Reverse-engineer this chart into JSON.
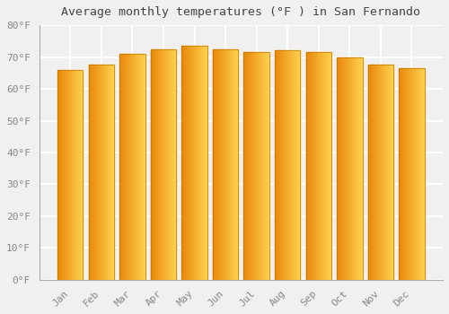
{
  "title": "Average monthly temperatures (°F ) in San Fernando",
  "months": [
    "Jan",
    "Feb",
    "Mar",
    "Apr",
    "May",
    "Jun",
    "Jul",
    "Aug",
    "Sep",
    "Oct",
    "Nov",
    "Dec"
  ],
  "values": [
    66.0,
    67.5,
    71.0,
    72.5,
    73.5,
    72.5,
    71.5,
    72.0,
    71.5,
    70.0,
    67.5,
    66.5
  ],
  "bar_color_left": "#E8870A",
  "bar_color_right": "#FFD050",
  "bar_edge_color": "#C07800",
  "background_color": "#f0f0f0",
  "grid_color": "#ffffff",
  "tick_label_color": "#888888",
  "title_color": "#444444",
  "ylim": [
    0,
    80
  ],
  "ytick_step": 10,
  "bar_width": 0.82
}
